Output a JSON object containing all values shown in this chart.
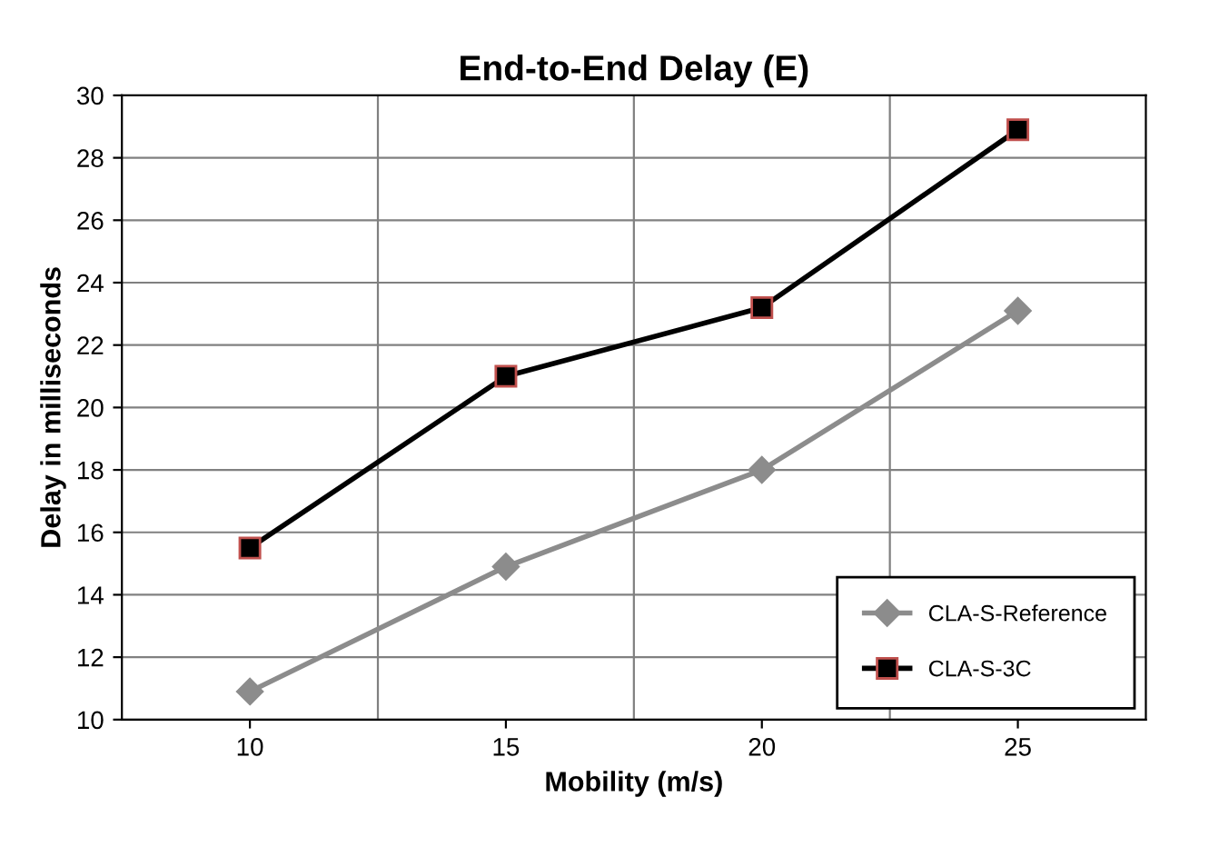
{
  "chart_data": {
    "type": "line",
    "title": "End-to-End Delay (E)",
    "xlabel": "Mobility (m/s)",
    "ylabel": "Delay in milliseconds",
    "categories": [
      "10",
      "15",
      "20",
      "25"
    ],
    "series": [
      {
        "name": "CLA-S-Reference",
        "color": "#8c8c8c",
        "marker": "diamond",
        "values": [
          10.9,
          14.9,
          18.0,
          23.1
        ]
      },
      {
        "name": "CLA-S-3C",
        "color": "#000000",
        "marker": "square",
        "values": [
          15.5,
          21.0,
          23.2,
          28.9
        ]
      }
    ],
    "ylim": [
      10,
      30
    ],
    "yticks": [
      10,
      12,
      14,
      16,
      18,
      20,
      22,
      24,
      26,
      28,
      30
    ],
    "grid": true,
    "legend": "bottom right",
    "line_style": "solid"
  }
}
